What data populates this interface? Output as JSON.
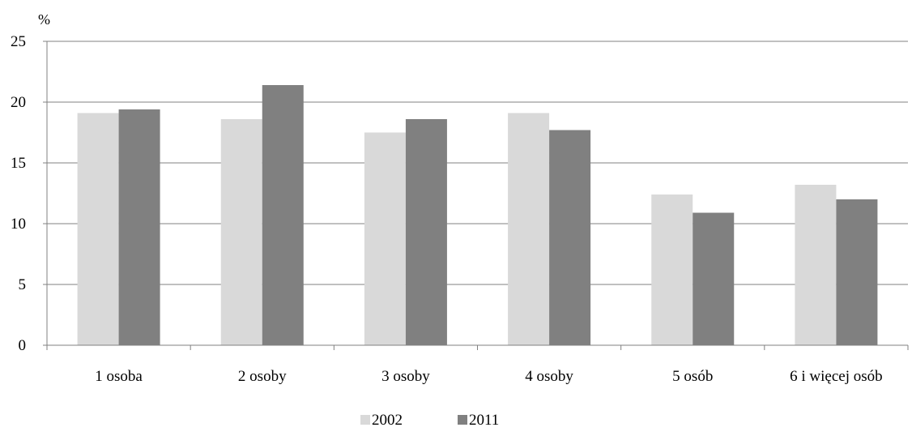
{
  "chart_data": {
    "type": "bar",
    "ylabel": "%",
    "xlabel": "",
    "ylim": [
      0,
      25
    ],
    "yticks": [
      0,
      5,
      10,
      15,
      20,
      25
    ],
    "grid": true,
    "legend_position": "bottom",
    "categories": [
      "1 osoba",
      "2 osoby",
      "3 osoby",
      "4 osoby",
      "5  osób",
      "6 i więcej osób"
    ],
    "series": [
      {
        "name": "2002",
        "color": "#d9d9d9",
        "values": [
          19.1,
          18.6,
          17.5,
          19.1,
          12.4,
          13.2
        ]
      },
      {
        "name": "2011",
        "color": "#808080",
        "values": [
          19.4,
          21.4,
          18.6,
          17.7,
          10.9,
          12.0
        ]
      }
    ]
  }
}
